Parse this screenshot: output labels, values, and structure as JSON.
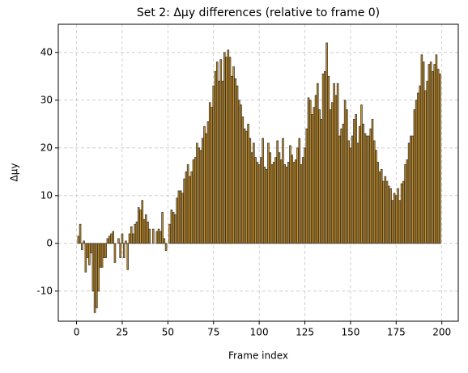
{
  "chart_data": {
    "type": "bar",
    "title": "Set 2: Δμy differences (relative to frame 0)",
    "xlabel": "Frame index",
    "ylabel": "Δμy",
    "x": [
      0,
      1,
      2,
      3,
      4,
      5,
      6,
      7,
      8,
      9,
      10,
      11,
      12,
      13,
      14,
      15,
      16,
      17,
      18,
      19,
      20,
      21,
      22,
      23,
      24,
      25,
      26,
      27,
      28,
      29,
      30,
      31,
      32,
      33,
      34,
      35,
      36,
      37,
      38,
      39,
      40,
      41,
      42,
      43,
      44,
      45,
      46,
      47,
      48,
      49,
      50,
      51,
      52,
      53,
      54,
      55,
      56,
      57,
      58,
      59,
      60,
      61,
      62,
      63,
      64,
      65,
      66,
      67,
      68,
      69,
      70,
      71,
      72,
      73,
      74,
      75,
      76,
      77,
      78,
      79,
      80,
      81,
      82,
      83,
      84,
      85,
      86,
      87,
      88,
      89,
      90,
      91,
      92,
      93,
      94,
      95,
      96,
      97,
      98,
      99,
      100,
      101,
      102,
      103,
      104,
      105,
      106,
      107,
      108,
      109,
      110,
      111,
      112,
      113,
      114,
      115,
      116,
      117,
      118,
      119,
      120,
      121,
      122,
      123,
      124,
      125,
      126,
      127,
      128,
      129,
      130,
      131,
      132,
      133,
      134,
      135,
      136,
      137,
      138,
      139,
      140,
      141,
      142,
      143,
      144,
      145,
      146,
      147,
      148,
      149,
      150,
      151,
      152,
      153,
      154,
      155,
      156,
      157,
      158,
      159,
      160,
      161,
      162,
      163,
      164,
      165,
      166,
      167,
      168,
      169,
      170,
      171,
      172,
      173,
      174,
      175,
      176,
      177,
      178,
      179,
      180,
      181,
      182,
      183,
      184,
      185,
      186,
      187,
      188,
      189,
      190,
      191,
      192,
      193,
      194,
      195,
      196,
      197,
      198,
      199
    ],
    "values": [
      0,
      1.5,
      4,
      -1.3,
      0.5,
      -6,
      -3,
      -4.5,
      -2,
      -10,
      -14.5,
      -13.5,
      -10,
      -5,
      -5,
      -3,
      -3,
      1,
      1.5,
      2,
      2.5,
      -4,
      0,
      1,
      -3,
      2,
      -3,
      0.5,
      -5.5,
      2,
      3.5,
      2,
      4,
      4.5,
      7.5,
      7,
      9,
      5,
      6,
      4.5,
      3,
      0,
      3,
      0,
      2.5,
      3,
      2.5,
      6.5,
      1,
      -1.5,
      0,
      4,
      7,
      6.5,
      6,
      9.5,
      11,
      11,
      10.5,
      13.5,
      15,
      16.5,
      14,
      15,
      17.5,
      18,
      21,
      20,
      19.5,
      22,
      24.5,
      23,
      25.5,
      29.5,
      28.5,
      33,
      36,
      38,
      34,
      38.5,
      34,
      40,
      39,
      40.5,
      39,
      35,
      37,
      34.5,
      33,
      30,
      29,
      26.5,
      24,
      23.5,
      25,
      22,
      19,
      21,
      18,
      17,
      16.5,
      18,
      22,
      16,
      15.5,
      21,
      19,
      16.5,
      17,
      18,
      21.5,
      19,
      17.5,
      22,
      16.5,
      16,
      17,
      20.5,
      18.5,
      17,
      17.5,
      20,
      22,
      16.5,
      18,
      20,
      24,
      30.5,
      30,
      27,
      28.5,
      31,
      33.5,
      28,
      26,
      35.5,
      36,
      42,
      35,
      28,
      29.5,
      33.5,
      31,
      33.5,
      22.5,
      24,
      25,
      30,
      28,
      21.5,
      20,
      22.5,
      26,
      27,
      21,
      24.5,
      29,
      25,
      23,
      22.5,
      22.5,
      24,
      26,
      21.5,
      19.5,
      17,
      15,
      15.5,
      13,
      14,
      13,
      12,
      11.5,
      9,
      10.5,
      10,
      11.5,
      9,
      12.5,
      13,
      16.5,
      17.5,
      21,
      22.5,
      22.5,
      28,
      30,
      31.5,
      33,
      39.5,
      38,
      32,
      34,
      37.5,
      38,
      36,
      37.5,
      39.5,
      36.5,
      35.5
    ],
    "color": "#d99414",
    "edgecolor": "#3a3a3a",
    "xlim": [
      -10,
      209
    ],
    "xticks": [
      0,
      25,
      50,
      75,
      100,
      125,
      150,
      175,
      200
    ],
    "ylim": [
      -16.3,
      45.9
    ],
    "yticks": [
      -10,
      0,
      10,
      20,
      30,
      40
    ],
    "grid": true
  }
}
